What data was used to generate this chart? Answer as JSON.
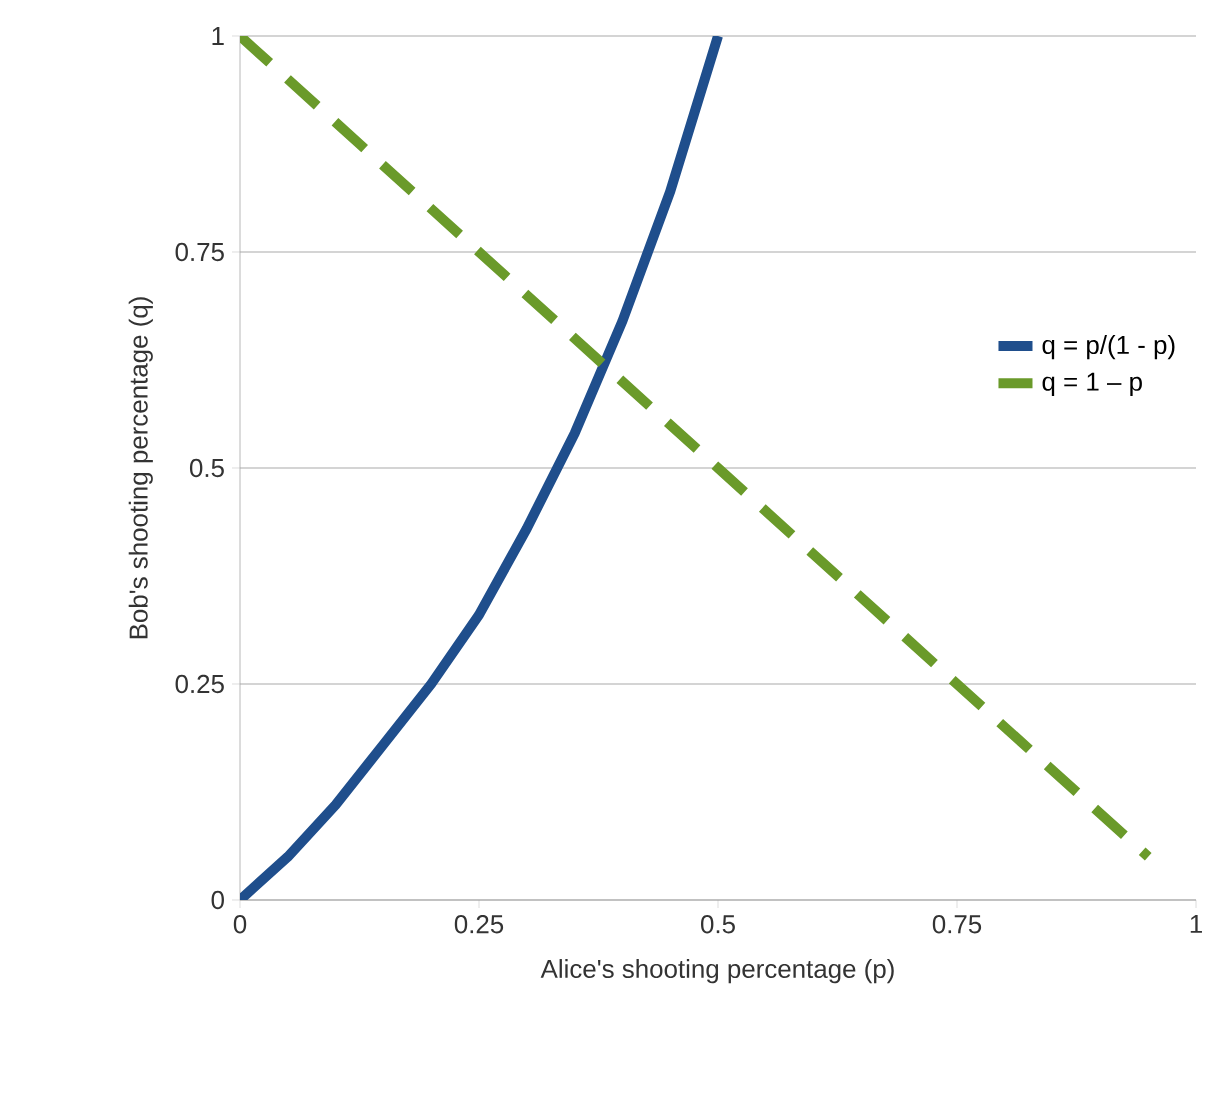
{
  "chart_data": {
    "type": "line",
    "xlabel": "Alice's shooting percentage (p)",
    "ylabel": "Bob's shooting percentage (q)",
    "xlim": [
      0,
      1
    ],
    "ylim": [
      0,
      1
    ],
    "xticks": [
      0,
      0.25,
      0.5,
      0.75,
      1
    ],
    "yticks": [
      0,
      0.25,
      0.5,
      0.75,
      1
    ],
    "grid": "y",
    "legend": "right",
    "marker": "none",
    "series": [
      {
        "name": "q = p/(1 - p)",
        "color": "#1f4e8c",
        "line_style": "solid",
        "x": [
          0,
          0.05,
          0.1,
          0.15,
          0.2,
          0.25,
          0.3,
          0.35,
          0.4,
          0.45,
          0.5
        ],
        "values": [
          0,
          0.05,
          0.11,
          0.18,
          0.25,
          0.33,
          0.43,
          0.54,
          0.67,
          0.82,
          1
        ]
      },
      {
        "name": "q = 1 – p",
        "color": "#6a9a2a",
        "line_style": "dashed",
        "x": [
          0,
          0.5,
          0.95
        ],
        "values": [
          1,
          0.5,
          0.05
        ]
      }
    ]
  }
}
